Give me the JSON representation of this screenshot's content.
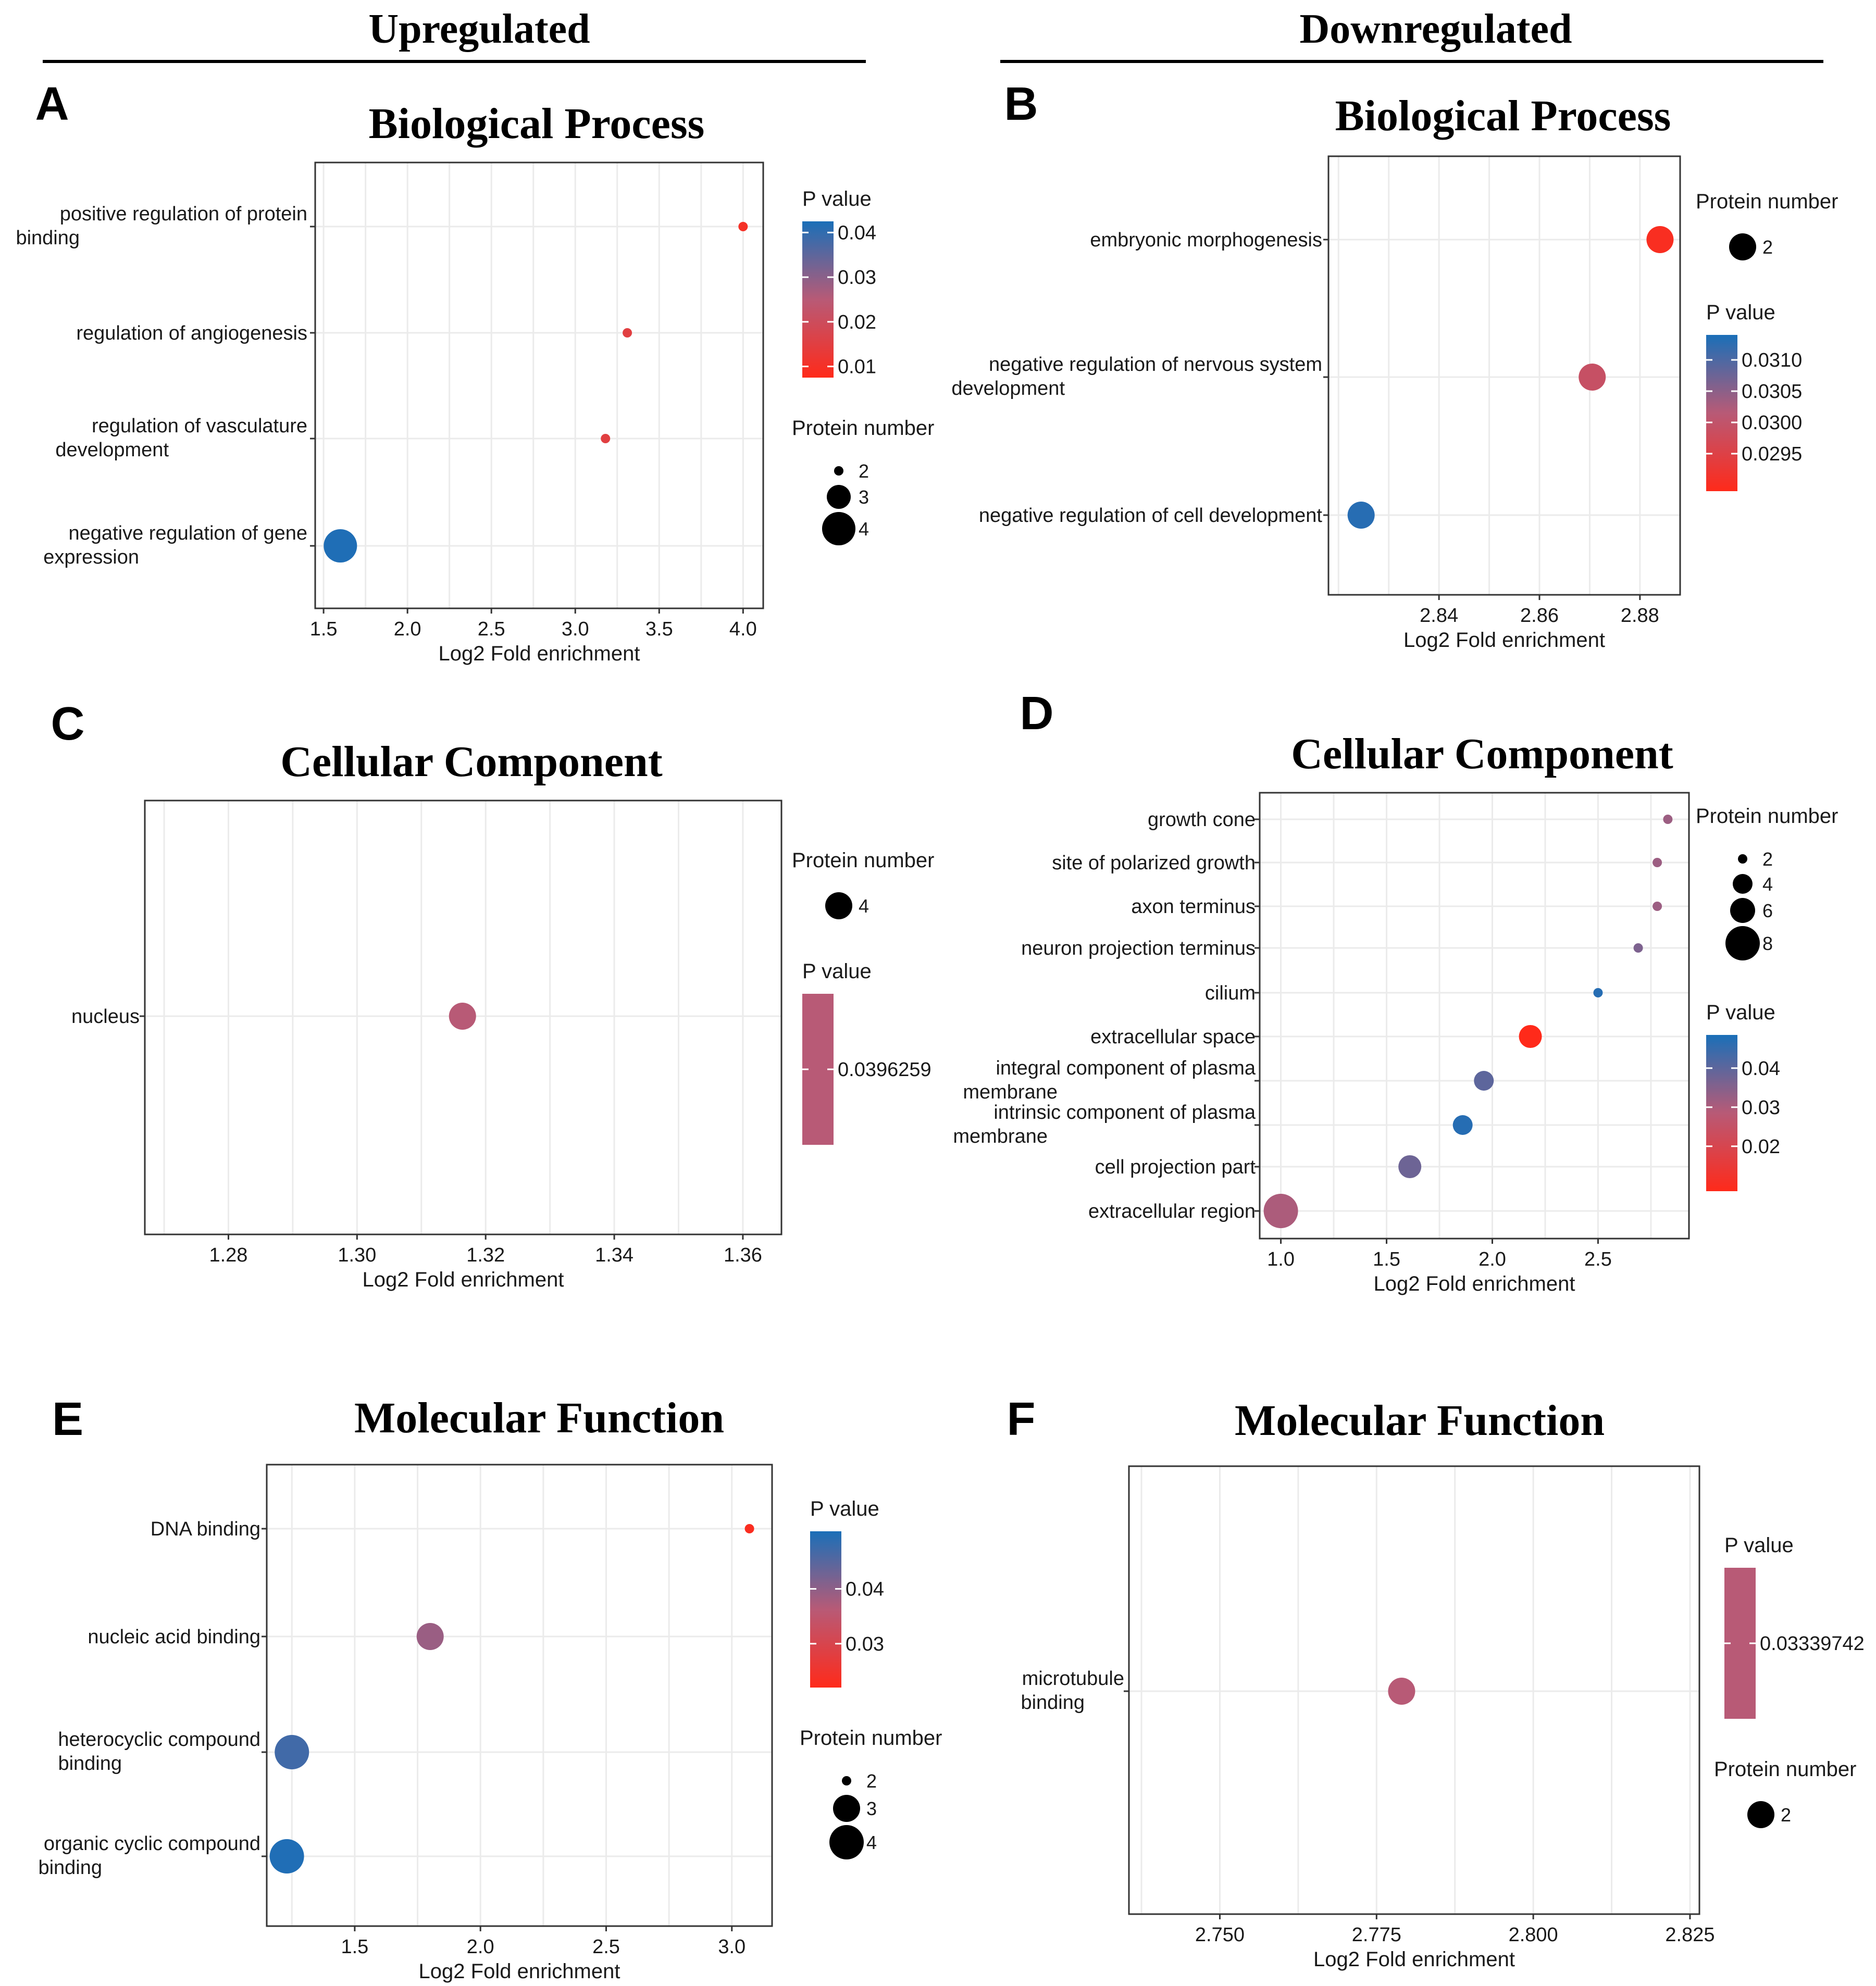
{
  "headers": {
    "left": "Upregulated",
    "right": "Downregulated"
  },
  "axis_label": "Log2 Fold enrichment",
  "colors": {
    "low_p": "#ff2a1a",
    "mid_p": "#b85a76",
    "high_p": "#1a6fb8",
    "grid": "#ebebeb",
    "frame": "#333333"
  },
  "chart_data": [
    {
      "id": "A",
      "type": "scatter",
      "title": "Biological Process",
      "xlabel": "Log2 Fold enrichment",
      "xlim": [
        1.45,
        4.12
      ],
      "xticks": [
        "1.5",
        "2.0",
        "2.5",
        "3.0",
        "3.5",
        "4.0"
      ],
      "xtick_values": [
        1.5,
        2.0,
        2.5,
        3.0,
        3.5,
        4.0
      ],
      "terms": [
        {
          "label": [
            "positive regulation of protein",
            "binding"
          ],
          "x": 4.0,
          "count": 2,
          "p": 0.01
        },
        {
          "label": [
            "regulation of angiogenesis"
          ],
          "x": 3.31,
          "count": 2,
          "p": 0.015
        },
        {
          "label": [
            "regulation of vasculature",
            "development"
          ],
          "x": 3.18,
          "count": 2,
          "p": 0.015
        },
        {
          "label": [
            "negative regulation of gene",
            "expression"
          ],
          "x": 1.6,
          "count": 4,
          "p": 0.042
        }
      ],
      "pvalue_legend": {
        "title": "P value",
        "ticks": [
          "0.04",
          "0.03",
          "0.02",
          "0.01"
        ],
        "tick_values": [
          0.04,
          0.03,
          0.02,
          0.01
        ],
        "range": [
          0.0075,
          0.0425
        ]
      },
      "size_legend": {
        "title": "Protein number",
        "values": [
          2,
          3,
          4
        ]
      },
      "legend_order": "pvalue-first"
    },
    {
      "id": "B",
      "type": "scatter",
      "title": "Biological Process",
      "xlabel": "Log2 Fold enrichment",
      "xlim": [
        2.818,
        2.888
      ],
      "xticks": [
        "2.84",
        "2.86",
        "2.88"
      ],
      "xtick_values": [
        2.84,
        2.86,
        2.88
      ],
      "terms": [
        {
          "label": [
            "embryonic morphogenesis"
          ],
          "x": 2.884,
          "count": 2,
          "p": 0.029
        },
        {
          "label": [
            "negative regulation of nervous system",
            "development"
          ],
          "x": 2.8705,
          "count": 2,
          "p": 0.0299
        },
        {
          "label": [
            "negative regulation of cell development"
          ],
          "x": 2.8245,
          "count": 2,
          "p": 0.0313
        }
      ],
      "pvalue_legend": {
        "title": "P value",
        "ticks": [
          "0.0310",
          "0.0305",
          "0.0300",
          "0.0295"
        ],
        "tick_values": [
          0.031,
          0.0305,
          0.03,
          0.0295
        ],
        "range": [
          0.0289,
          0.0314
        ]
      },
      "size_legend": {
        "title": "Protein number",
        "values": [
          2
        ]
      },
      "legend_order": "size-first"
    },
    {
      "id": "C",
      "type": "scatter",
      "title": "Cellular Component",
      "xlabel": "Log2 Fold enrichment",
      "xlim": [
        1.267,
        1.366
      ],
      "xticks": [
        "1.28",
        "1.30",
        "1.32",
        "1.34",
        "1.36"
      ],
      "xtick_values": [
        1.28,
        1.3,
        1.32,
        1.34,
        1.36
      ],
      "terms": [
        {
          "label": [
            "nucleus"
          ],
          "x": 1.3164,
          "count": 4,
          "p": 0.0396259
        }
      ],
      "pvalue_legend": {
        "title": "P value",
        "ticks": [
          "0.0396259"
        ],
        "tick_values": [
          0.0396259
        ],
        "range": [
          0.0396,
          0.0397
        ],
        "single": true
      },
      "size_legend": {
        "title": "Protein number",
        "values": [
          4
        ]
      },
      "legend_order": "size-first"
    },
    {
      "id": "D",
      "type": "scatter",
      "title": "Cellular Component",
      "xlabel": "Log2 Fold enrichment",
      "xlim": [
        0.9,
        2.93
      ],
      "xticks": [
        "1.0",
        "1.5",
        "2.0",
        "2.5"
      ],
      "xtick_values": [
        1.0,
        1.5,
        2.0,
        2.5
      ],
      "terms": [
        {
          "label": [
            "growth cone"
          ],
          "x": 2.83,
          "count": 2,
          "p": 0.032
        },
        {
          "label": [
            "site of polarized growth"
          ],
          "x": 2.78,
          "count": 2,
          "p": 0.032
        },
        {
          "label": [
            "axon terminus"
          ],
          "x": 2.78,
          "count": 2,
          "p": 0.032
        },
        {
          "label": [
            "neuron projection terminus"
          ],
          "x": 2.69,
          "count": 2,
          "p": 0.036
        },
        {
          "label": [
            "cilium"
          ],
          "x": 2.5,
          "count": 2,
          "p": 0.047
        },
        {
          "label": [
            "extracellular space"
          ],
          "x": 2.18,
          "count": 5,
          "p": 0.008
        },
        {
          "label": [
            "integral component of plasma",
            "membrane"
          ],
          "x": 1.96,
          "count": 4,
          "p": 0.04
        },
        {
          "label": [
            "intrinsic component of plasma",
            "membrane"
          ],
          "x": 1.86,
          "count": 4,
          "p": 0.047
        },
        {
          "label": [
            "cell projection part"
          ],
          "x": 1.61,
          "count": 5,
          "p": 0.038
        },
        {
          "label": [
            "extracellular region"
          ],
          "x": 1.0,
          "count": 8,
          "p": 0.03
        }
      ],
      "pvalue_legend": {
        "title": "P value",
        "ticks": [
          "0.04",
          "0.03",
          "0.02"
        ],
        "tick_values": [
          0.04,
          0.03,
          0.02
        ],
        "range": [
          0.0085,
          0.0485
        ]
      },
      "size_legend": {
        "title": "Protein number",
        "values": [
          2,
          4,
          6,
          8
        ]
      },
      "legend_order": "size-first"
    },
    {
      "id": "E",
      "type": "scatter",
      "title": "Molecular Function",
      "xlabel": "Log2 Fold enrichment",
      "xlim": [
        1.15,
        3.16
      ],
      "xticks": [
        "1.5",
        "2.0",
        "2.5",
        "3.0"
      ],
      "xtick_values": [
        1.5,
        2.0,
        2.5,
        3.0
      ],
      "terms": [
        {
          "label": [
            "DNA binding"
          ],
          "x": 3.07,
          "count": 2,
          "p": 0.023
        },
        {
          "label": [
            "nucleic acid binding"
          ],
          "x": 1.8,
          "count": 3,
          "p": 0.039
        },
        {
          "label": [
            "heterocyclic compound",
            "binding"
          ],
          "x": 1.25,
          "count": 4,
          "p": 0.047
        },
        {
          "label": [
            "organic cyclic compound",
            "binding"
          ],
          "x": 1.23,
          "count": 4,
          "p": 0.05
        }
      ],
      "pvalue_legend": {
        "title": "P value",
        "ticks": [
          "0.04",
          "0.03"
        ],
        "tick_values": [
          0.04,
          0.03
        ],
        "range": [
          0.022,
          0.0505
        ]
      },
      "size_legend": {
        "title": "Protein number",
        "values": [
          2,
          3,
          4
        ]
      },
      "legend_order": "pvalue-first"
    },
    {
      "id": "F",
      "type": "scatter",
      "title": "Molecular Function",
      "xlabel": "Log2 Fold enrichment",
      "xlim": [
        2.7355,
        2.8265
      ],
      "xticks": [
        "2.750",
        "2.775",
        "2.800",
        "2.825"
      ],
      "xtick_values": [
        2.75,
        2.775,
        2.8,
        2.825
      ],
      "terms": [
        {
          "label": [
            "microtubule",
            "binding"
          ],
          "x": 2.779,
          "count": 2,
          "p": 0.03339742
        }
      ],
      "pvalue_legend": {
        "title": "P value",
        "ticks": [
          "0.03339742"
        ],
        "tick_values": [
          0.03339742
        ],
        "range": [
          0.0333,
          0.0335
        ],
        "single": true
      },
      "size_legend": {
        "title": "Protein number",
        "values": [
          2
        ]
      },
      "legend_order": "pvalue-first"
    }
  ]
}
